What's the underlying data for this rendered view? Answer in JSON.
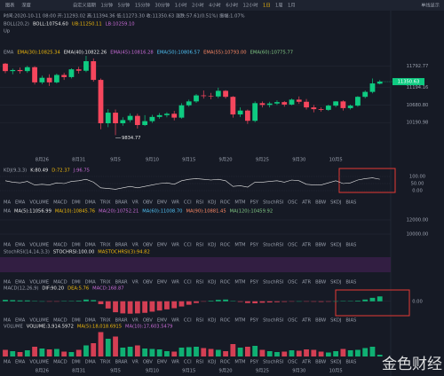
{
  "toolbar": {
    "left": [
      "图表",
      "深度"
    ],
    "periods": [
      "自定义周期",
      "1分钟",
      "5分钟",
      "15分钟",
      "30分钟",
      "1小时",
      "2小时",
      "4小时",
      "6小时",
      "12小时",
      "1日",
      "1周",
      "1月"
    ],
    "right": "单线显示"
  },
  "info": "时间:2020-10-11 08:00  开:11293.02  高:11394.36  低:11273.30  收:11350.63  涨跌:57.61(0.51%)  振幅:1.07%",
  "overlays": {
    "boll": [
      "BOLL(20,2)",
      "BOLL:10754.60",
      "UB:11250.11",
      "LB:10259.10"
    ],
    "boll_sub": "Up",
    "ema": [
      "EMA",
      "EMA(30):10825.34",
      "EMA(40):10822.26",
      "EMA(45):10816.28",
      "EMA(50):10806.57",
      "EMA(55):10793.00",
      "EMA(60):10775.77"
    ]
  },
  "indicator_tabs": [
    "MA",
    "EMA",
    "VOLUME",
    "MACD",
    "DMI",
    "DMA",
    "TRIX",
    "BRAR",
    "VR",
    "OBV",
    "EMV",
    "WR",
    "CCI",
    "RSI",
    "KDJ",
    "ROC",
    "MTM",
    "PSY",
    "StochRSI",
    "OSC",
    "ATR",
    "BBW",
    "SKDJ",
    "BIAS"
  ],
  "indicator_headers": {
    "ma": {
      "items": [
        "MA",
        "MA(5):11056.99",
        "MA(10):10845.76",
        "MA(20):10752.21",
        "MA(60):11008.70",
        "MA(90):10881.45",
        "MA(120):10459.92"
      ],
      "ylim": [
        9500,
        12500
      ],
      "yticks": [
        {
          "value": 12000,
          "label": "12000.00"
        },
        {
          "value": 10000,
          "label": "10000.00"
        }
      ]
    },
    "stochrsi": {
      "items": [
        "StochRSI(14,14,3,3)",
        "STOCHRSI:100.00",
        "MASTOCHRSI(3):94.82"
      ]
    }
  },
  "watermark": "金色财经",
  "chart_data": [
    {
      "type": "candlestick",
      "x_labels": [
        null,
        null,
        null,
        null,
        null,
        "8月26",
        null,
        null,
        null,
        null,
        "8月31",
        null,
        null,
        null,
        null,
        "9月5",
        null,
        null,
        null,
        null,
        "9月10",
        null,
        null,
        null,
        null,
        "9月15",
        null,
        null,
        null,
        null,
        "9月20",
        null,
        null,
        null,
        null,
        "9月25",
        null,
        null,
        null,
        null,
        "9月30",
        null,
        null,
        null,
        null,
        "10月5",
        null,
        null,
        null,
        null,
        null,
        null
      ],
      "open": [
        11860,
        11650,
        11680,
        11650,
        11760,
        11330,
        11460,
        11330,
        11540,
        11480,
        11700,
        11660,
        11930,
        11400,
        10170,
        10470,
        10170,
        10260,
        10380,
        10120,
        10230,
        10350,
        10400,
        10440,
        10330,
        10680,
        10790,
        10960,
        10940,
        10930,
        11090,
        10920,
        10420,
        10530,
        10240,
        10740,
        10690,
        10730,
        10770,
        10700,
        10840,
        10780,
        10620,
        10570,
        10550,
        10670,
        10790,
        10600,
        10670,
        10920,
        11060,
        11293.02
      ],
      "high": [
        11880,
        11720,
        11750,
        11800,
        11790,
        11520,
        11560,
        11580,
        11600,
        11730,
        11770,
        12080,
        12010,
        11440,
        10570,
        10560,
        10340,
        10450,
        10440,
        10400,
        10410,
        10460,
        10480,
        10520,
        10740,
        10840,
        11000,
        11100,
        11030,
        11180,
        11110,
        10940,
        10620,
        10560,
        10790,
        10790,
        10780,
        10820,
        10800,
        10870,
        10930,
        10860,
        10690,
        10620,
        10700,
        10800,
        10820,
        10700,
        10940,
        11100,
        11440,
        11394.36
      ],
      "low": [
        11590,
        11560,
        11580,
        11600,
        11270,
        11280,
        11230,
        11300,
        11400,
        11440,
        11580,
        11620,
        11350,
        10000,
        10060,
        9834.77,
        10100,
        10200,
        10020,
        10090,
        10180,
        10300,
        10340,
        10250,
        10300,
        10640,
        10750,
        10870,
        10850,
        10880,
        10870,
        10330,
        10350,
        10150,
        10200,
        10620,
        10620,
        10690,
        10640,
        10680,
        10720,
        10560,
        10480,
        10500,
        10520,
        10630,
        10530,
        10560,
        10640,
        10880,
        11020,
        11273.3
      ],
      "close": [
        11650,
        11680,
        11650,
        11760,
        11330,
        11460,
        11330,
        11540,
        11480,
        11700,
        11660,
        11930,
        11400,
        10170,
        10470,
        10170,
        10260,
        10380,
        10120,
        10230,
        10350,
        10400,
        10440,
        10330,
        10680,
        10790,
        10960,
        10940,
        10930,
        11090,
        10920,
        10420,
        10530,
        10240,
        10740,
        10690,
        10730,
        10770,
        10700,
        10840,
        10780,
        10620,
        10570,
        10550,
        10670,
        10790,
        10600,
        10670,
        10920,
        11060,
        11300,
        11350.63
      ],
      "ylim": [
        9340,
        12660
      ],
      "yticks": [
        11792.77,
        11194.16,
        {
          "value": 10680.8,
          "label": "10680.80"
        },
        10190.98
      ],
      "colors": {
        "up": "#0ecb81",
        "down": "#f6465d"
      },
      "low_marker_index": 15
    },
    {
      "type": "line",
      "title": "KDJ(9,3,3)",
      "readouts": [
        "K:80.49",
        "D:72.37",
        "J:96.75"
      ],
      "readout_colors": [
        "#e8e8e8",
        "#f0b90b",
        "#c86bd6"
      ],
      "values": [
        70,
        60,
        55,
        65,
        40,
        45,
        40,
        55,
        50,
        65,
        70,
        80,
        60,
        20,
        15,
        10,
        20,
        30,
        20,
        30,
        40,
        50,
        55,
        45,
        70,
        80,
        85,
        80,
        75,
        80,
        70,
        30,
        35,
        25,
        60,
        60,
        65,
        70,
        60,
        75,
        70,
        45,
        40,
        40,
        55,
        70,
        50,
        55,
        75,
        85,
        90,
        80.49
      ],
      "color": "#e8e8e8",
      "ylim": [
        0,
        100
      ],
      "yticks": [
        {
          "value": 100,
          "label": "100.00"
        },
        {
          "value": 50,
          "label": "50.00"
        },
        {
          "value": 0,
          "label": "0.00"
        }
      ]
    },
    {
      "type": "bar",
      "title": "MACD(12,26,9)",
      "readouts": [
        "DIF:90.20",
        "DEA:5.76",
        "MACD:168.87"
      ],
      "readout_colors": [
        "#e8e8e8",
        "#f0b90b",
        "#c86bd6"
      ],
      "values": [
        50,
        40,
        30,
        30,
        10,
        0,
        -10,
        -5,
        5,
        10,
        20,
        60,
        40,
        -100,
        -250,
        -380,
        -420,
        -430,
        -420,
        -400,
        -360,
        -320,
        -280,
        -240,
        -180,
        -120,
        -60,
        -10,
        20,
        50,
        60,
        10,
        -20,
        -60,
        -70,
        -50,
        -40,
        -30,
        -20,
        -10,
        0,
        -5,
        -15,
        -20,
        -15,
        0,
        10,
        5,
        20,
        60,
        120,
        168.87
      ],
      "colors": {
        "up": "#0ecb81",
        "down": "#f6465d"
      },
      "ylim": [
        -500,
        300
      ],
      "yticks": [
        {
          "value": 0,
          "label": "0.00"
        }
      ]
    },
    {
      "type": "bar",
      "title": "VOLUME",
      "readouts": [
        "VOLUME:3,914.5972",
        "MA(5):18,018.6915",
        "MA(10):17,603.5479"
      ],
      "readout_colors": [
        "#e8e8e8",
        "#f0b90b",
        "#c86bd6"
      ],
      "values": [
        15000,
        12000,
        10000,
        14000,
        22000,
        18000,
        16000,
        17000,
        11000,
        10000,
        15000,
        25000,
        30000,
        55000,
        40000,
        45000,
        20000,
        22000,
        25000,
        18000,
        17000,
        16000,
        12000,
        11000,
        20000,
        21000,
        22000,
        19000,
        17000,
        15000,
        12000,
        28000,
        20000,
        22000,
        24000,
        15000,
        12000,
        10000,
        11000,
        14000,
        13000,
        16000,
        15000,
        11000,
        9000,
        12000,
        17000,
        14000,
        15000,
        19000,
        22000,
        3914.5972
      ],
      "colors": {
        "up": "#0ecb81",
        "down": "#f6465d"
      },
      "ylim": [
        0,
        60000
      ]
    }
  ]
}
